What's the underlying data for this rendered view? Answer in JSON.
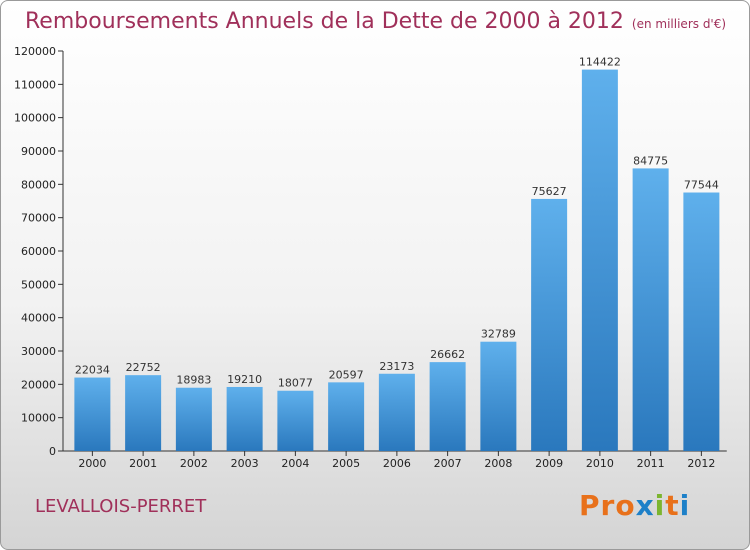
{
  "header": {
    "title": "Remboursements Annuels de la Dette de 2000 à 2012",
    "unit": "(en milliers d'€)"
  },
  "footer": {
    "commune": "LEVALLOIS-PERRET",
    "logo_text": "Proxiti",
    "logo_colors": [
      "#e8711b",
      "#e8711b",
      "#e8711b",
      "#1d80c8",
      "#7cb52f",
      "#e8711b",
      "#1d80c8"
    ]
  },
  "colors": {
    "title": "#a0305a",
    "bar_top": "#5fb0ec",
    "bar_bottom": "#2a78bd",
    "axis": "#333333"
  },
  "chart_data": {
    "type": "bar",
    "title": "Remboursements Annuels de la Dette de 2000 à 2012",
    "ylabel": "",
    "xlabel": "",
    "categories": [
      "2000",
      "2001",
      "2002",
      "2003",
      "2004",
      "2005",
      "2006",
      "2007",
      "2008",
      "2009",
      "2010",
      "2011",
      "2012"
    ],
    "values": [
      22034,
      22752,
      18983,
      19210,
      18077,
      20597,
      23173,
      26662,
      32789,
      75627,
      114422,
      84775,
      77544
    ],
    "ylim": [
      0,
      120000
    ],
    "yticks": [
      0,
      10000,
      20000,
      30000,
      40000,
      50000,
      60000,
      70000,
      80000,
      90000,
      100000,
      110000,
      120000
    ],
    "grid": false,
    "legend": "none"
  }
}
